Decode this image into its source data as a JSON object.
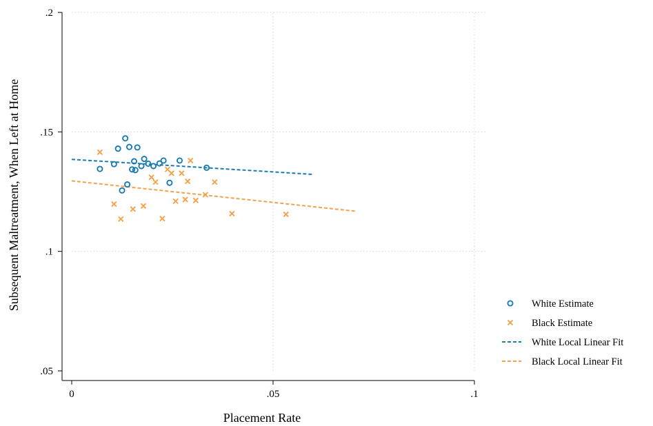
{
  "colors": {
    "white_series": "#1a7bb0",
    "black_series": "#f5a04a",
    "grid": "#d3d3d3",
    "axis": "#000000"
  },
  "chart_data": {
    "type": "scatter",
    "title": "",
    "xlabel": "Placement Rate",
    "ylabel": "Subsequent Maltreatment, When Left at Home",
    "xlim": [
      0,
      0.1
    ],
    "ylim": [
      0.05,
      0.2
    ],
    "xticks": [
      0,
      0.05,
      0.1
    ],
    "xtick_labels": [
      "0",
      ".05",
      ".1"
    ],
    "yticks": [
      0.05,
      0.1,
      0.15,
      0.2
    ],
    "ytick_labels": [
      ".05",
      ".1",
      ".15",
      ".2"
    ],
    "grid": true,
    "legend_position": "right",
    "series": [
      {
        "name": "White Estimate",
        "marker": "circle",
        "color": "#1a7bb0",
        "points": [
          [
            0.007,
            0.1345
          ],
          [
            0.0105,
            0.1365
          ],
          [
            0.0115,
            0.143
          ],
          [
            0.0125,
            0.1255
          ],
          [
            0.0133,
            0.1473
          ],
          [
            0.0138,
            0.128
          ],
          [
            0.0143,
            0.1437
          ],
          [
            0.015,
            0.1343
          ],
          [
            0.0155,
            0.1377
          ],
          [
            0.0158,
            0.134
          ],
          [
            0.0163,
            0.1435
          ],
          [
            0.0173,
            0.1357
          ],
          [
            0.018,
            0.1387
          ],
          [
            0.019,
            0.1367
          ],
          [
            0.0203,
            0.1357
          ],
          [
            0.0218,
            0.1368
          ],
          [
            0.0228,
            0.138
          ],
          [
            0.0243,
            0.1287
          ],
          [
            0.0268,
            0.138
          ],
          [
            0.0335,
            0.135
          ]
        ]
      },
      {
        "name": "Black Estimate",
        "marker": "x",
        "color": "#f5a04a",
        "points": [
          [
            0.007,
            0.1415
          ],
          [
            0.0105,
            0.1198
          ],
          [
            0.0122,
            0.1135
          ],
          [
            0.0152,
            0.1177
          ],
          [
            0.0178,
            0.119
          ],
          [
            0.0198,
            0.131
          ],
          [
            0.0208,
            0.129
          ],
          [
            0.0225,
            0.1137
          ],
          [
            0.0238,
            0.1343
          ],
          [
            0.0248,
            0.1327
          ],
          [
            0.0258,
            0.121
          ],
          [
            0.0273,
            0.1327
          ],
          [
            0.0282,
            0.1217
          ],
          [
            0.0288,
            0.1293
          ],
          [
            0.0295,
            0.138
          ],
          [
            0.0308,
            0.1213
          ],
          [
            0.0332,
            0.1237
          ],
          [
            0.0355,
            0.129
          ],
          [
            0.0398,
            0.1158
          ],
          [
            0.0532,
            0.1155
          ]
        ]
      },
      {
        "name": "White Local Linear Fit",
        "line_style": "dashed",
        "color": "#1a7bb0",
        "points": [
          [
            0,
            0.1385
          ],
          [
            0.06,
            0.1322
          ]
        ]
      },
      {
        "name": "Black Local Linear Fit",
        "line_style": "dashed",
        "color": "#f5a04a",
        "points": [
          [
            0,
            0.1295
          ],
          [
            0.0705,
            0.1168
          ]
        ]
      }
    ]
  }
}
